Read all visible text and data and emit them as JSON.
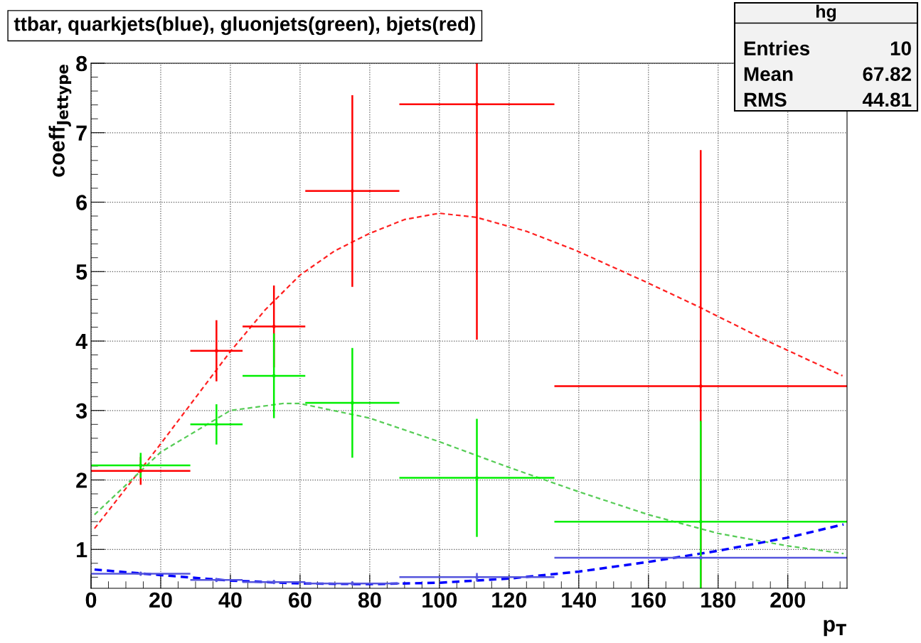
{
  "chart_data": {
    "type": "scatter",
    "title": "ttbar, quarkjets(blue), gluonjets(green), bjets(red)",
    "xlabel": "p$_{T}$",
    "ylabel": "coeff$_{Jettype}$",
    "x": [
      14.25,
      36,
      52.5,
      75,
      110.75,
      175
    ],
    "series": [
      {
        "type": "line",
        "line_style": "dashed",
        "color": "#ff2020",
        "x": [
          1,
          20,
          40,
          50,
          60,
          70,
          80,
          90,
          100,
          110.7,
          125,
          139.4,
          159.3,
          175,
          192.9,
          215.7
        ],
        "values": [
          1.3,
          2.52,
          3.85,
          4.45,
          4.95,
          5.3,
          5.55,
          5.75,
          5.84,
          5.78,
          5.58,
          5.3,
          4.85,
          4.48,
          4.03,
          3.5
        ]
      },
      {
        "type": "line",
        "line_style": "dashed",
        "color": "#55cc55",
        "x": [
          1,
          20,
          40,
          55,
          60,
          80,
          100,
          120,
          140,
          160,
          180,
          200,
          216
        ],
        "values": [
          1.5,
          2.4,
          3.0,
          3.1,
          3.1,
          2.89,
          2.55,
          2.18,
          1.83,
          1.5,
          1.23,
          1.05,
          0.94
        ]
      },
      {
        "type": "line",
        "line_style": "dashed",
        "color": "#0000ff",
        "x": [
          1,
          20,
          40,
          60,
          80,
          100,
          120,
          140,
          160,
          180,
          200,
          216
        ],
        "values": [
          0.71,
          0.63,
          0.55,
          0.51,
          0.5,
          0.52,
          0.58,
          0.68,
          0.82,
          0.98,
          1.17,
          1.36
        ]
      },
      {
        "color": "#5555dd",
        "values": [
          0.65,
          0.56,
          0.53,
          0.51,
          0.6,
          0.88
        ],
        "errors": [
          0.03,
          0.03,
          0.03,
          0.03,
          0.06,
          0.03
        ],
        "xerrors": [
          14.25,
          7.5,
          9,
          13.5,
          22.25,
          42
        ]
      },
      {
        "color": "#ff0000",
        "values": [
          2.13,
          3.86,
          4.21,
          6.16,
          7.41,
          3.35
        ],
        "errors": [
          0.2,
          0.44,
          0.59,
          1.38,
          [
            4.02,
            8
          ],
          [
            0.44,
            6.75
          ]
        ],
        "xerrors": [
          14.25,
          7.5,
          9,
          13.5,
          22.25,
          42
        ]
      },
      {
        "color": "#00ee00",
        "values": [
          2.21,
          2.8,
          3.5,
          3.11,
          2.03,
          1.4
        ],
        "errors": [
          0.18,
          0.29,
          0.61,
          0.79,
          0.85,
          [
            0.44,
            2.85
          ]
        ],
        "xerrors": [
          14.25,
          7.5,
          9,
          13.5,
          22.25,
          42
        ]
      }
    ],
    "marker": "none",
    "xlim": [
      0,
      217
    ],
    "xticks": [
      0,
      20,
      40,
      60,
      80,
      100,
      120,
      140,
      160,
      180,
      200
    ],
    "ylim": [
      0.44,
      8
    ],
    "yticks": [
      1,
      2,
      3,
      4,
      5,
      6,
      7,
      8
    ],
    "grid": true,
    "legend": false,
    "annotations": [
      "hg",
      "Entries",
      "10",
      "Mean",
      "67.82",
      "RMS",
      "44.81"
    ]
  }
}
